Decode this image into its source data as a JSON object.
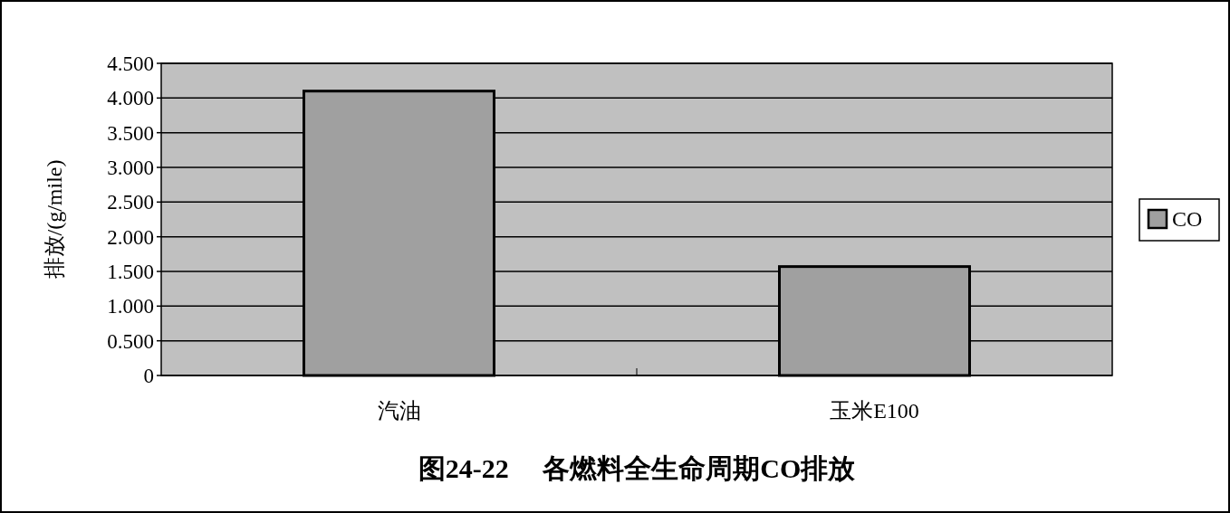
{
  "chart_data": {
    "type": "bar",
    "title": "图24-22     各燃料全生命周期CO排放",
    "ylabel": "排放/(g/mile)",
    "categories": [
      "汽油",
      "玉米E100"
    ],
    "series": [
      {
        "name": "CO",
        "color": "#a0a0a0",
        "values": [
          4.1,
          1.57
        ]
      }
    ],
    "ylim": [
      0,
      4.5
    ],
    "yticks": [
      0,
      {
        "value": 0.5,
        "label": "0.500"
      },
      {
        "value": 1,
        "label": "1.000"
      },
      {
        "value": 1.5,
        "label": "1.500"
      },
      {
        "value": 2,
        "label": "2.000"
      },
      {
        "value": 2.5,
        "label": "2.500"
      },
      {
        "value": 3,
        "label": "3.000"
      },
      {
        "value": 3.5,
        "label": "3.500"
      },
      {
        "value": 4,
        "label": "4.000"
      },
      {
        "value": 4.5,
        "label": "4.500"
      }
    ],
    "grid": "y",
    "legend": "right"
  }
}
